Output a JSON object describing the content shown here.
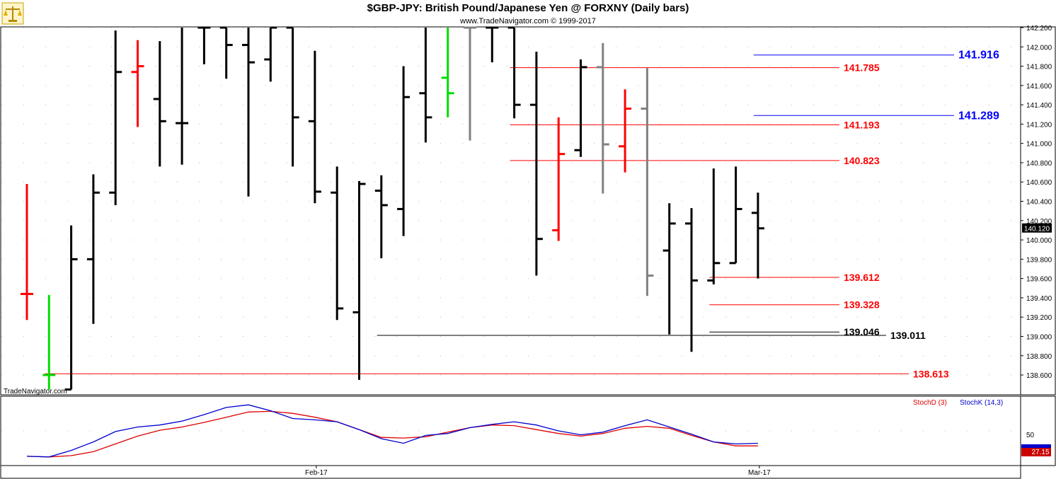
{
  "header": {
    "title": "$GBP-JPY:  British Pound/Japanese Yen @ FORXNY  (Daily bars)",
    "copyright": "www.TradeNavigator.com © 1999-2017"
  },
  "watermark": "TradeNavigator.com",
  "logo_icon": "scales-icon",
  "colors": {
    "up_bar": "#000000",
    "down_bar": "#ff0000",
    "outside_bar": "#00dd00",
    "inside_bar": "#808080",
    "level_red": "#ff0000",
    "level_blue": "#0000ff",
    "level_black": "#000000",
    "stoch_d": "#dd0000",
    "stoch_k": "#0000cc"
  },
  "chart_data": [
    {
      "type": "ohlc",
      "title": "$GBP-JPY:  British Pound/Japanese Yen @ FORXNY  (Daily bars)",
      "ylim": [
        138.45,
        142.22
      ],
      "y_ticks": [
        "142.200",
        "142.000",
        "141.800",
        "141.600",
        "141.400",
        "141.200",
        "141.000",
        "140.800",
        "140.600",
        "140.400",
        "140.200",
        "140.000",
        "139.800",
        "139.600",
        "139.400",
        "139.200",
        "139.000",
        "138.800",
        "138.600"
      ],
      "x_ticks": [
        {
          "bar": 13,
          "label": "Feb-17"
        },
        {
          "bar": 33,
          "label": "Mar-17"
        }
      ],
      "last_price": "140.120",
      "bars": [
        {
          "o": 139.44,
          "h": 140.58,
          "l": 139.17,
          "c": 139.44,
          "color": "red"
        },
        {
          "o": 138.6,
          "h": 139.43,
          "l": 138.45,
          "c": 138.6,
          "color": "green"
        },
        {
          "o": 138.45,
          "h": 140.15,
          "l": 138.45,
          "c": 139.8,
          "color": "black"
        },
        {
          "o": 139.8,
          "h": 140.68,
          "l": 139.13,
          "c": 140.49,
          "color": "black"
        },
        {
          "o": 140.49,
          "h": 142.17,
          "l": 140.36,
          "c": 141.74,
          "color": "black"
        },
        {
          "o": 141.74,
          "h": 142.07,
          "l": 141.17,
          "c": 141.8,
          "color": "red"
        },
        {
          "o": 141.46,
          "h": 142.06,
          "l": 140.76,
          "c": 141.23,
          "color": "black"
        },
        {
          "o": 141.21,
          "h": 142.2,
          "l": 140.78,
          "c": 141.21,
          "color": "black"
        },
        {
          "o": 142.2,
          "h": 142.2,
          "l": 141.82,
          "c": 142.2,
          "color": "black"
        },
        {
          "o": 142.2,
          "h": 142.2,
          "l": 141.67,
          "c": 142.02,
          "color": "black"
        },
        {
          "o": 142.02,
          "h": 142.2,
          "l": 140.45,
          "c": 141.84,
          "color": "black"
        },
        {
          "o": 141.87,
          "h": 142.2,
          "l": 141.64,
          "c": 142.2,
          "color": "black"
        },
        {
          "o": 142.2,
          "h": 142.2,
          "l": 140.76,
          "c": 141.27,
          "color": "black"
        },
        {
          "o": 141.23,
          "h": 141.96,
          "l": 140.38,
          "c": 140.5,
          "color": "black"
        },
        {
          "o": 140.49,
          "h": 140.76,
          "l": 139.17,
          "c": 139.29,
          "color": "black"
        },
        {
          "o": 139.25,
          "h": 140.61,
          "l": 138.55,
          "c": 140.58,
          "color": "black"
        },
        {
          "o": 140.51,
          "h": 140.67,
          "l": 139.81,
          "c": 140.36,
          "color": "black"
        },
        {
          "o": 140.32,
          "h": 141.8,
          "l": 140.04,
          "c": 141.48,
          "color": "black"
        },
        {
          "o": 141.52,
          "h": 142.2,
          "l": 141.01,
          "c": 141.27,
          "color": "black"
        },
        {
          "o": 141.68,
          "h": 142.2,
          "l": 141.27,
          "c": 141.52,
          "color": "green"
        },
        {
          "o": 142.2,
          "h": 142.2,
          "l": 141.03,
          "c": 142.2,
          "color": "gray"
        },
        {
          "o": 142.2,
          "h": 142.2,
          "l": 141.84,
          "c": 142.2,
          "color": "black"
        },
        {
          "o": 142.2,
          "h": 142.2,
          "l": 141.26,
          "c": 141.4,
          "color": "black"
        },
        {
          "o": 141.4,
          "h": 141.95,
          "l": 139.63,
          "c": 140.01,
          "color": "black"
        },
        {
          "o": 140.1,
          "h": 141.27,
          "l": 139.99,
          "c": 140.89,
          "color": "red"
        },
        {
          "o": 140.93,
          "h": 141.87,
          "l": 140.86,
          "c": 141.79,
          "color": "black"
        },
        {
          "o": 141.79,
          "h": 142.04,
          "l": 140.48,
          "c": 140.99,
          "color": "gray"
        },
        {
          "o": 140.97,
          "h": 141.56,
          "l": 140.7,
          "c": 141.36,
          "color": "red"
        },
        {
          "o": 141.36,
          "h": 141.78,
          "l": 139.42,
          "c": 139.63,
          "color": "gray"
        },
        {
          "o": 139.89,
          "h": 140.38,
          "l": 139.02,
          "c": 140.17,
          "color": "black"
        },
        {
          "o": 140.17,
          "h": 140.33,
          "l": 138.84,
          "c": 139.58,
          "color": "black"
        },
        {
          "o": 139.58,
          "h": 140.74,
          "l": 139.54,
          "c": 139.76,
          "color": "black"
        },
        {
          "o": 139.76,
          "h": 140.76,
          "l": 139.76,
          "c": 140.32,
          "color": "black"
        },
        {
          "o": 140.28,
          "h": 140.49,
          "l": 139.6,
          "c": 140.12,
          "color": "black"
        }
      ],
      "levels": [
        {
          "value": 141.916,
          "label": "141.916",
          "color": "blue",
          "from_bar": 33
        },
        {
          "value": 141.289,
          "label": "141.289",
          "color": "blue",
          "from_bar": 33
        },
        {
          "value": 141.785,
          "label": "141.785",
          "color": "red",
          "from_bar": 22
        },
        {
          "value": 141.193,
          "label": "141.193",
          "color": "red",
          "from_bar": 22
        },
        {
          "value": 140.823,
          "label": "140.823",
          "color": "red",
          "from_bar": 22
        },
        {
          "value": 139.612,
          "label": "139.612",
          "color": "red",
          "from_bar": 31
        },
        {
          "value": 139.328,
          "label": "139.328",
          "color": "red",
          "from_bar": 31
        },
        {
          "value": 139.046,
          "label": "139.046",
          "color": "black",
          "from_bar": 31
        },
        {
          "value": 139.011,
          "label": "139.011",
          "color": "black",
          "from_bar": 16
        },
        {
          "value": 138.613,
          "label": "138.613",
          "color": "red",
          "from_bar": 1
        }
      ]
    },
    {
      "type": "line",
      "title": "Stochastics",
      "ylim": [
        0,
        100
      ],
      "y_ticks": [
        "50"
      ],
      "last_value": "27.15",
      "series": [
        {
          "name": "StochD (3)",
          "color": "red",
          "values": [
            11,
            10,
            12,
            18,
            30,
            42,
            51,
            56,
            63,
            71,
            79,
            80,
            77,
            71,
            64,
            52,
            40,
            39,
            41,
            48,
            55,
            59,
            58,
            52,
            46,
            42,
            46,
            54,
            57,
            54,
            43,
            33,
            27,
            27
          ]
        },
        {
          "name": "StochK (14,3)",
          "color": "blue",
          "values": [
            11,
            10,
            20,
            33,
            49,
            56,
            59,
            65,
            75,
            86,
            90,
            81,
            69,
            67,
            64,
            52,
            38,
            31,
            43,
            46,
            55,
            60,
            64,
            59,
            50,
            44,
            48,
            58,
            67,
            56,
            45,
            33,
            30,
            31
          ]
        }
      ]
    }
  ]
}
